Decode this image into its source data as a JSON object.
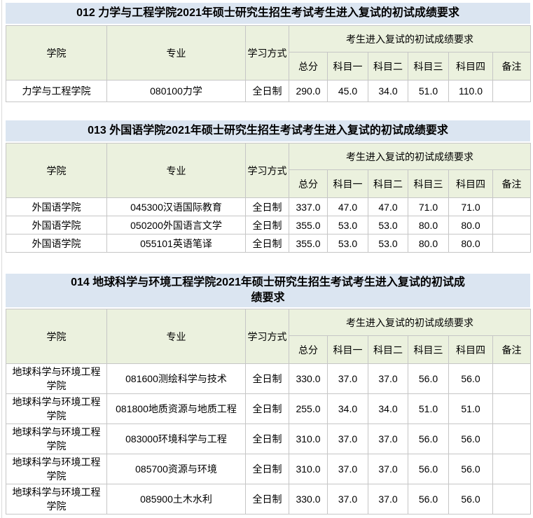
{
  "colors": {
    "title_bar_bg": "#dbe5f1",
    "header_cell_bg": "#ebf1de",
    "table_border": "#c6c6c6",
    "text": "#000000",
    "page_bg": "#ffffff"
  },
  "table_header": {
    "college": "学院",
    "major": "专业",
    "study_mode": "学习方式",
    "requirements_group": "考生进入复试的初试成绩要求",
    "total": "总分",
    "subject1": "科目一",
    "subject2": "科目二",
    "subject3": "科目三",
    "subject4": "科目四",
    "remark": "备注"
  },
  "tables": [
    {
      "title": "012 力学与工程学院2021年硕士研究生招生考试考生进入复试的初试成绩要求",
      "rows": [
        {
          "college": "力学与工程学院",
          "major": "080100力学",
          "mode": "全日制",
          "total": "290.0",
          "s1": "45.0",
          "s2": "34.0",
          "s3": "51.0",
          "s4": "110.0",
          "remark": ""
        }
      ]
    },
    {
      "title": "013 外国语学院2021年硕士研究生招生考试考生进入复试的初试成绩要求",
      "rows": [
        {
          "college": "外国语学院",
          "major": "045300汉语国际教育",
          "mode": "全日制",
          "total": "337.0",
          "s1": "47.0",
          "s2": "47.0",
          "s3": "71.0",
          "s4": "71.0",
          "remark": ""
        },
        {
          "college": "外国语学院",
          "major": "050200外国语言文学",
          "mode": "全日制",
          "total": "355.0",
          "s1": "53.0",
          "s2": "53.0",
          "s3": "80.0",
          "s4": "80.0",
          "remark": ""
        },
        {
          "college": "外国语学院",
          "major": "055101英语笔译",
          "mode": "全日制",
          "total": "355.0",
          "s1": "53.0",
          "s2": "53.0",
          "s3": "80.0",
          "s4": "80.0",
          "remark": ""
        }
      ]
    },
    {
      "title": "014 地球科学与环境工程学院2021年硕士研究生招生考试考生进入复试的初试成绩要求",
      "rows": [
        {
          "college": "地球科学与环境工程学院",
          "major": "081600测绘科学与技术",
          "mode": "全日制",
          "total": "330.0",
          "s1": "37.0",
          "s2": "37.0",
          "s3": "56.0",
          "s4": "56.0",
          "remark": ""
        },
        {
          "college": "地球科学与环境工程学院",
          "major": "081800地质资源与地质工程",
          "mode": "全日制",
          "total": "255.0",
          "s1": "34.0",
          "s2": "34.0",
          "s3": "51.0",
          "s4": "51.0",
          "remark": ""
        },
        {
          "college": "地球科学与环境工程学院",
          "major": "083000环境科学与工程",
          "mode": "全日制",
          "total": "310.0",
          "s1": "37.0",
          "s2": "37.0",
          "s3": "56.0",
          "s4": "56.0",
          "remark": ""
        },
        {
          "college": "地球科学与环境工程学院",
          "major": "085700资源与环境",
          "mode": "全日制",
          "total": "310.0",
          "s1": "37.0",
          "s2": "37.0",
          "s3": "56.0",
          "s4": "56.0",
          "remark": ""
        },
        {
          "college": "地球科学与环境工程学院",
          "major": "085900土木水利",
          "mode": "全日制",
          "total": "330.0",
          "s1": "37.0",
          "s2": "37.0",
          "s3": "56.0",
          "s4": "56.0",
          "remark": ""
        }
      ]
    }
  ]
}
